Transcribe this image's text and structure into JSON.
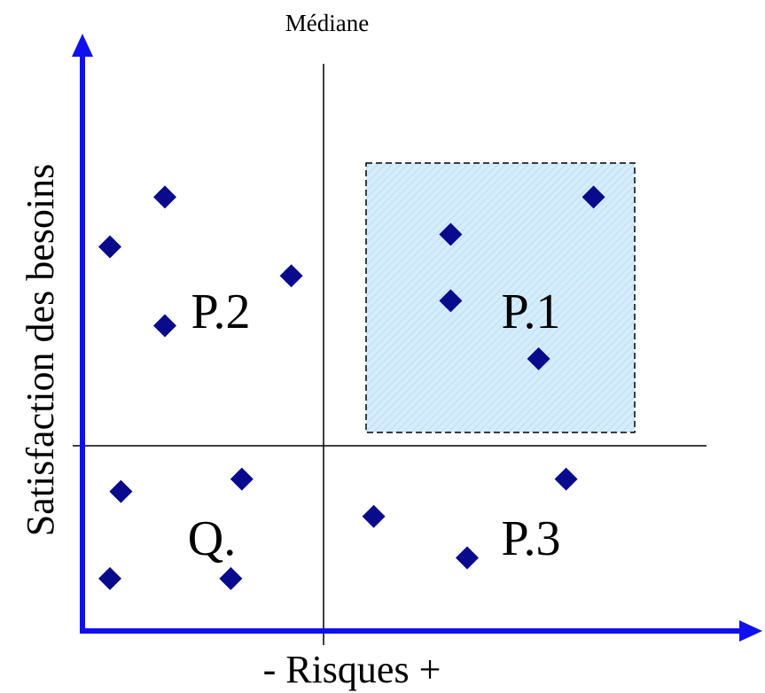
{
  "labels": {
    "median": "Médiane",
    "y_axis": "Satisfaction des besoins",
    "x_axis": "- Risques +",
    "p1": "P.1",
    "p2": "P.2",
    "p3": "P.3",
    "q": "Q."
  },
  "colors": {
    "axis": "#1010ee",
    "marker": "#0a0a8c",
    "highlight_fill": "#d3ecfa",
    "highlight_border": "#000000",
    "divider": "#000000"
  },
  "chart_data": {
    "type": "scatter",
    "xlabel": "- Risques +",
    "ylabel": "Satisfaction des besoins",
    "median_label": "Médiane",
    "quadrants": [
      "P.1",
      "P.2",
      "P.3",
      "Q."
    ],
    "highlighted_quadrant": "P.1",
    "points": [
      {
        "x": 1.5,
        "y": 9.8
      },
      {
        "x": 0.5,
        "y": 8.6
      },
      {
        "x": 3.8,
        "y": 7.9
      },
      {
        "x": 1.5,
        "y": 6.7
      },
      {
        "x": 6.7,
        "y": 8.9
      },
      {
        "x": 9.3,
        "y": 9.8
      },
      {
        "x": 6.7,
        "y": 7.3
      },
      {
        "x": 8.3,
        "y": 5.9
      },
      {
        "x": 0.7,
        "y": 2.7
      },
      {
        "x": 2.9,
        "y": 3.0
      },
      {
        "x": 0.5,
        "y": 0.6
      },
      {
        "x": 2.7,
        "y": 0.6
      },
      {
        "x": 5.3,
        "y": 2.1
      },
      {
        "x": 8.8,
        "y": 3.0
      },
      {
        "x": 7.0,
        "y": 1.1
      }
    ]
  }
}
